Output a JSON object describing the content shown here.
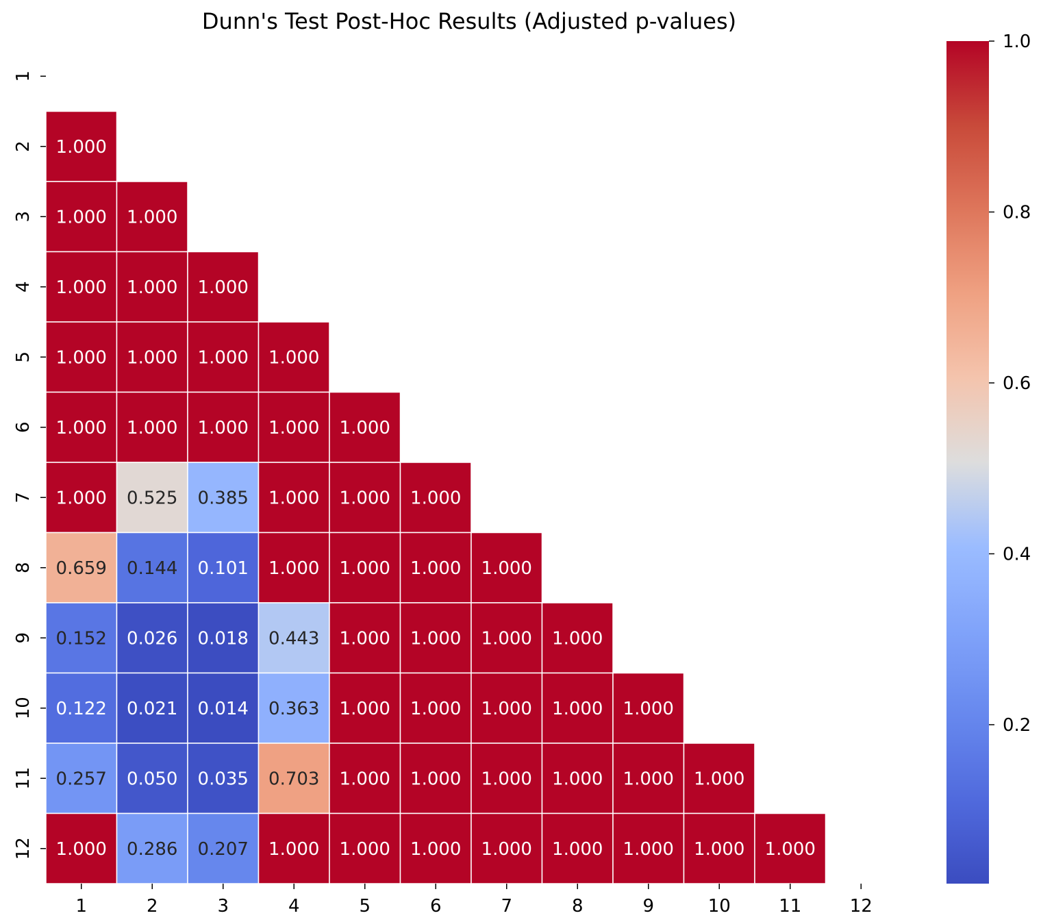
{
  "chart_data": {
    "type": "heatmap",
    "title": "Dunn's Test Post-Hoc Results (Adjusted p-values)",
    "xlabel": "",
    "ylabel": "",
    "x_categories": [
      "1",
      "2",
      "3",
      "4",
      "5",
      "6",
      "7",
      "8",
      "9",
      "10",
      "11",
      "12"
    ],
    "y_categories": [
      "1",
      "2",
      "3",
      "4",
      "5",
      "6",
      "7",
      "8",
      "9",
      "10",
      "11",
      "12"
    ],
    "mask": "upper triangle including diagonal",
    "matrix": [
      [
        null,
        null,
        null,
        null,
        null,
        null,
        null,
        null,
        null,
        null,
        null,
        null
      ],
      [
        1.0,
        null,
        null,
        null,
        null,
        null,
        null,
        null,
        null,
        null,
        null,
        null
      ],
      [
        1.0,
        1.0,
        null,
        null,
        null,
        null,
        null,
        null,
        null,
        null,
        null,
        null
      ],
      [
        1.0,
        1.0,
        1.0,
        null,
        null,
        null,
        null,
        null,
        null,
        null,
        null,
        null
      ],
      [
        1.0,
        1.0,
        1.0,
        1.0,
        null,
        null,
        null,
        null,
        null,
        null,
        null,
        null
      ],
      [
        1.0,
        1.0,
        1.0,
        1.0,
        1.0,
        null,
        null,
        null,
        null,
        null,
        null,
        null
      ],
      [
        1.0,
        0.525,
        0.385,
        1.0,
        1.0,
        1.0,
        null,
        null,
        null,
        null,
        null,
        null
      ],
      [
        0.659,
        0.144,
        0.101,
        1.0,
        1.0,
        1.0,
        1.0,
        null,
        null,
        null,
        null,
        null
      ],
      [
        0.152,
        0.026,
        0.018,
        0.443,
        1.0,
        1.0,
        1.0,
        1.0,
        null,
        null,
        null,
        null
      ],
      [
        0.122,
        0.021,
        0.014,
        0.363,
        1.0,
        1.0,
        1.0,
        1.0,
        1.0,
        null,
        null,
        null
      ],
      [
        0.257,
        0.05,
        0.035,
        0.703,
        1.0,
        1.0,
        1.0,
        1.0,
        1.0,
        1.0,
        null,
        null
      ],
      [
        1.0,
        0.286,
        0.207,
        1.0,
        1.0,
        1.0,
        1.0,
        1.0,
        1.0,
        1.0,
        1.0,
        null
      ]
    ],
    "value_format": "3 decimals",
    "colormap": "coolwarm",
    "colorbar": {
      "range": [
        0.014,
        1.0
      ],
      "ticks": [
        0.2,
        0.4,
        0.6,
        0.8,
        1.0
      ],
      "tick_labels": [
        "0.2",
        "0.4",
        "0.6",
        "0.8",
        "1.0"
      ]
    },
    "colors": {
      "low": "#3b4cc0",
      "mid": "#dddddd",
      "high": "#b40426",
      "cell_border": "#ffffff",
      "text_dark": "#262626",
      "text_light": "#ffffff"
    }
  }
}
